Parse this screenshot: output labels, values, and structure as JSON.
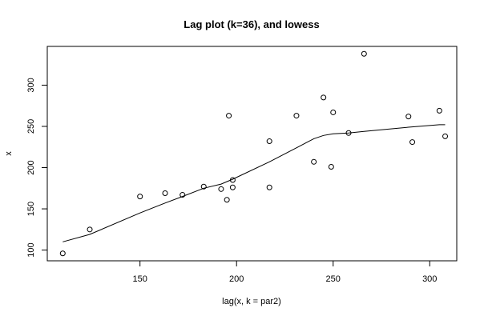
{
  "chart_data": {
    "type": "scatter",
    "title": "Lag plot (k=36), and lowess",
    "xlabel": "lag(x, k = par2)",
    "ylabel": "x",
    "xlim": [
      102,
      314
    ],
    "ylim": [
      87,
      347
    ],
    "xticks": [
      150,
      200,
      250,
      300
    ],
    "yticks": [
      100,
      150,
      200,
      250,
      300
    ],
    "grid": false,
    "series": [
      {
        "type": "scatter",
        "points": [
          [
            110,
            96
          ],
          [
            124,
            125
          ],
          [
            150,
            165
          ],
          [
            163,
            169
          ],
          [
            172,
            167
          ],
          [
            183,
            177
          ],
          [
            192,
            174
          ],
          [
            195,
            161
          ],
          [
            196,
            263
          ],
          [
            198,
            185
          ],
          [
            198,
            176
          ],
          [
            217,
            232
          ],
          [
            217,
            176
          ],
          [
            231,
            263
          ],
          [
            240,
            207
          ],
          [
            245,
            285
          ],
          [
            249,
            201
          ],
          [
            250,
            267
          ],
          [
            258,
            242
          ],
          [
            266,
            338
          ],
          [
            289,
            262
          ],
          [
            291,
            231
          ],
          [
            305,
            269
          ],
          [
            308,
            238
          ]
        ]
      },
      {
        "type": "line",
        "points": [
          [
            110,
            110
          ],
          [
            124,
            119
          ],
          [
            150,
            145
          ],
          [
            163,
            157
          ],
          [
            172,
            165
          ],
          [
            183,
            175
          ],
          [
            192,
            180
          ],
          [
            198,
            186
          ],
          [
            217,
            207
          ],
          [
            231,
            224
          ],
          [
            240,
            235
          ],
          [
            245,
            239
          ],
          [
            250,
            241
          ],
          [
            258,
            242
          ],
          [
            266,
            244
          ],
          [
            289,
            249
          ],
          [
            305,
            252
          ],
          [
            308,
            252
          ]
        ]
      }
    ]
  }
}
